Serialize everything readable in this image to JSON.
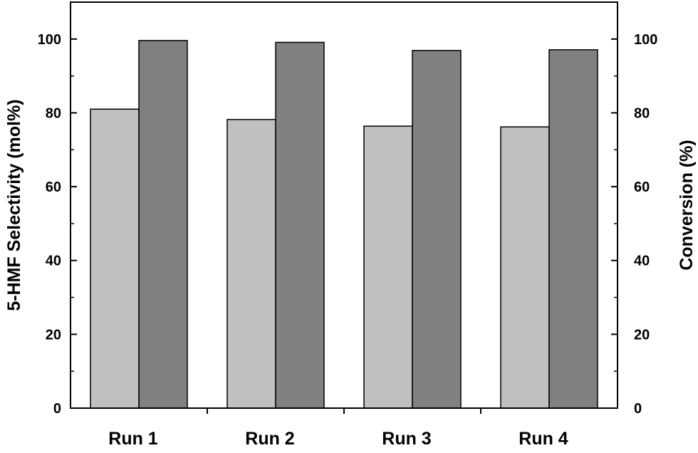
{
  "chart_data": {
    "type": "bar",
    "categories": [
      "Run 1",
      "Run 2",
      "Run 3",
      "Run 4"
    ],
    "series": [
      {
        "axis": "left",
        "color": "#c0c0c0",
        "values": [
          81,
          78.2,
          76.4,
          76.2
        ]
      },
      {
        "axis": "right",
        "color": "#808080",
        "values": [
          99.6,
          99.1,
          96.9,
          97.1
        ]
      }
    ],
    "ylabel": "5-HMF Selectivity (mol%)",
    "y2label": "Conversion (%)",
    "ylim": [
      0,
      110
    ],
    "y2lim": [
      0,
      110
    ],
    "yticks": [
      0,
      20,
      40,
      60,
      80,
      100
    ],
    "y2ticks": [
      0,
      20,
      40,
      60,
      80,
      100
    ],
    "grid": false,
    "legend": "none"
  }
}
